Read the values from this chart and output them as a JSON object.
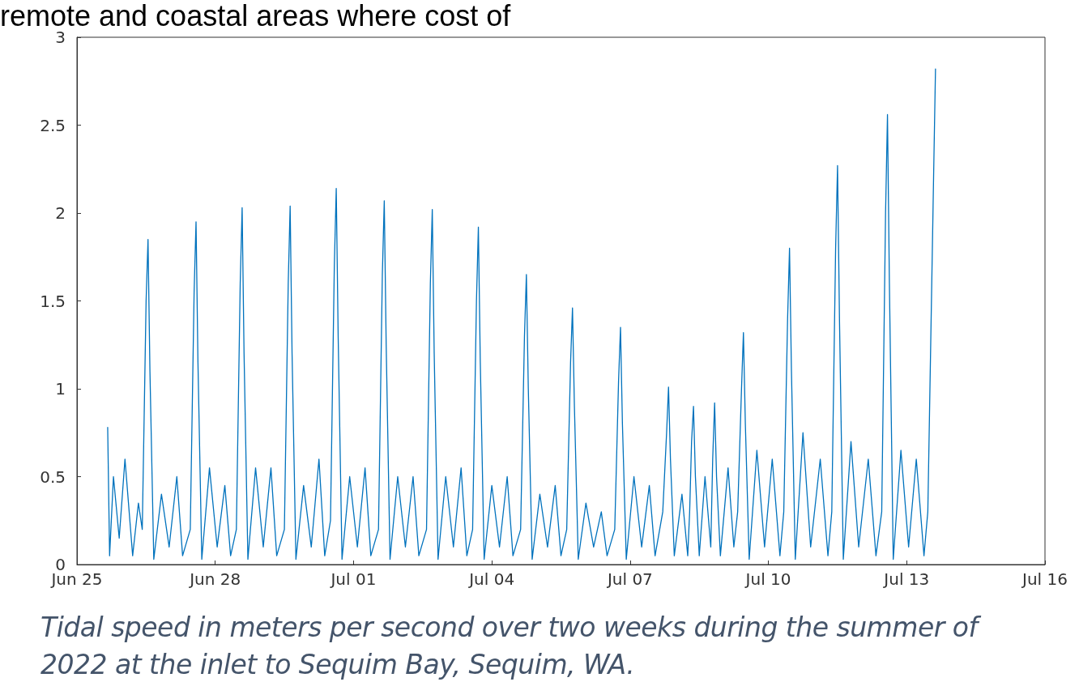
{
  "chart_data": {
    "type": "line",
    "annotations": [
      "remote and coastal areas where cost of",
      "Tidal speed in meters per second over two weeks during the summer of 2022 at the inlet to Sequim Bay, Sequim, WA."
    ],
    "xlim": [
      "2022-06-25",
      "2022-07-16"
    ],
    "xticks": [
      {
        "value": "2022-06-25",
        "label": "Jun 25"
      },
      {
        "value": "2022-06-28",
        "label": "Jun 28"
      },
      {
        "value": "2022-07-01",
        "label": "Jul 01"
      },
      {
        "value": "2022-07-04",
        "label": "Jul 04"
      },
      {
        "value": "2022-07-07",
        "label": "Jul 07"
      },
      {
        "value": "2022-07-10",
        "label": "Jul 10"
      },
      {
        "value": "2022-07-13",
        "label": "Jul 13"
      },
      {
        "value": "2022-07-16",
        "label": "Jul 16"
      }
    ],
    "ylim": [
      0,
      3
    ],
    "yticks": [
      0,
      0.5,
      1,
      1.5,
      2,
      2.5,
      3
    ],
    "grid": false,
    "marker": "none",
    "line_style": "solid",
    "series": [
      {
        "color": "#0072bd",
        "x": [
          "2022-06-25T16:00",
          "2022-06-25T17:00",
          "2022-06-25T19:00",
          "2022-06-25T22:00",
          "2022-06-26T01:00",
          "2022-06-26T05:00",
          "2022-06-26T08:00",
          "2022-06-26T10:00",
          "2022-06-26T12:00",
          "2022-06-26T13:00",
          "2022-06-26T14:00",
          "2022-06-26T16:00",
          "2022-06-26T20:00",
          "2022-06-27T00:00",
          "2022-06-27T04:00",
          "2022-06-27T07:00",
          "2022-06-27T11:00",
          "2022-06-27T13:00",
          "2022-06-27T14:00",
          "2022-06-27T15:00",
          "2022-06-27T17:00",
          "2022-06-27T21:00",
          "2022-06-28T01:00",
          "2022-06-28T05:00",
          "2022-06-28T08:00",
          "2022-06-28T11:00",
          "2022-06-28T13:00",
          "2022-06-28T14:00",
          "2022-06-28T15:00",
          "2022-06-28T17:00",
          "2022-06-28T21:00",
          "2022-06-29T01:00",
          "2022-06-29T05:00",
          "2022-06-29T08:00",
          "2022-06-29T12:00",
          "2022-06-29T14:00",
          "2022-06-29T15:00",
          "2022-06-29T16:00",
          "2022-06-29T18:00",
          "2022-06-29T22:00",
          "2022-06-30T02:00",
          "2022-06-30T06:00",
          "2022-06-30T09:00",
          "2022-06-30T12:00",
          "2022-06-30T14:00",
          "2022-06-30T15:00",
          "2022-06-30T16:00",
          "2022-06-30T18:00",
          "2022-06-30T22:00",
          "2022-07-01T02:00",
          "2022-07-01T06:00",
          "2022-07-01T09:00",
          "2022-07-01T13:00",
          "2022-07-01T15:00",
          "2022-07-01T16:00",
          "2022-07-01T17:00",
          "2022-07-01T19:00",
          "2022-07-01T23:00",
          "2022-07-02T03:00",
          "2022-07-02T07:00",
          "2022-07-02T10:00",
          "2022-07-02T14:00",
          "2022-07-02T16:00",
          "2022-07-02T17:00",
          "2022-07-02T18:00",
          "2022-07-02T20:00",
          "2022-07-03T00:00",
          "2022-07-03T04:00",
          "2022-07-03T08:00",
          "2022-07-03T11:00",
          "2022-07-03T14:00",
          "2022-07-03T16:00",
          "2022-07-03T17:00",
          "2022-07-03T18:00",
          "2022-07-03T20:00",
          "2022-07-04T00:00",
          "2022-07-04T04:00",
          "2022-07-04T08:00",
          "2022-07-04T11:00",
          "2022-07-04T15:00",
          "2022-07-04T17:00",
          "2022-07-04T18:00",
          "2022-07-04T19:00",
          "2022-07-04T21:00",
          "2022-07-05T01:00",
          "2022-07-05T05:00",
          "2022-07-05T09:00",
          "2022-07-05T12:00",
          "2022-07-05T15:00",
          "2022-07-05T17:00",
          "2022-07-05T18:00",
          "2022-07-05T19:00",
          "2022-07-05T21:00",
          "2022-07-06T01:00",
          "2022-07-06T05:00",
          "2022-07-06T09:00",
          "2022-07-06T12:00",
          "2022-07-06T16:00",
          "2022-07-06T18:00",
          "2022-07-06T19:00",
          "2022-07-06T20:00",
          "2022-07-06T22:00",
          "2022-07-07T02:00",
          "2022-07-07T06:00",
          "2022-07-07T10:00",
          "2022-07-07T13:00",
          "2022-07-07T17:00",
          "2022-07-07T19:00",
          "2022-07-07T20:00",
          "2022-07-07T21:00",
          "2022-07-07T23:00",
          "2022-07-08T03:00",
          "2022-07-08T06:00",
          "2022-07-08T07:00",
          "2022-07-08T08:00",
          "2022-07-08T09:00",
          "2022-07-08T10:00",
          "2022-07-08T12:00",
          "2022-07-08T15:00",
          "2022-07-08T18:00",
          "2022-07-08T19:00",
          "2022-07-08T20:00",
          "2022-07-08T21:00",
          "2022-07-08T23:00",
          "2022-07-09T03:00",
          "2022-07-09T06:00",
          "2022-07-09T08:00",
          "2022-07-09T10:00",
          "2022-07-09T11:00",
          "2022-07-09T12:00",
          "2022-07-09T14:00",
          "2022-07-09T18:00",
          "2022-07-09T22:00",
          "2022-07-10T02:00",
          "2022-07-10T06:00",
          "2022-07-10T08:00",
          "2022-07-10T10:00",
          "2022-07-10T11:00",
          "2022-07-10T12:00",
          "2022-07-10T14:00",
          "2022-07-10T18:00",
          "2022-07-10T22:00",
          "2022-07-11T03:00",
          "2022-07-11T07:00",
          "2022-07-11T09:00",
          "2022-07-11T11:00",
          "2022-07-11T12:00",
          "2022-07-11T13:00",
          "2022-07-11T15:00",
          "2022-07-11T19:00",
          "2022-07-11T23:00",
          "2022-07-12T04:00",
          "2022-07-12T08:00",
          "2022-07-12T11:00",
          "2022-07-12T13:00",
          "2022-07-12T14:00",
          "2022-07-12T15:00",
          "2022-07-12T17:00",
          "2022-07-12T21:00",
          "2022-07-13T01:00",
          "2022-07-13T05:00",
          "2022-07-13T09:00",
          "2022-07-13T11:00",
          "2022-07-13T14:00",
          "2022-07-13T15:00"
        ],
        "values": [
          0.78,
          0.05,
          0.5,
          0.15,
          0.6,
          0.05,
          0.35,
          0.2,
          1.5,
          1.85,
          1.1,
          0.03,
          0.4,
          0.1,
          0.5,
          0.05,
          0.2,
          1.55,
          1.95,
          1.15,
          0.03,
          0.55,
          0.1,
          0.45,
          0.05,
          0.2,
          1.6,
          2.03,
          1.2,
          0.03,
          0.55,
          0.1,
          0.55,
          0.05,
          0.2,
          1.6,
          2.04,
          1.2,
          0.03,
          0.45,
          0.1,
          0.6,
          0.05,
          0.25,
          1.7,
          2.14,
          1.3,
          0.03,
          0.5,
          0.1,
          0.55,
          0.05,
          0.2,
          1.65,
          2.07,
          1.25,
          0.03,
          0.5,
          0.1,
          0.5,
          0.05,
          0.2,
          1.6,
          2.02,
          1.2,
          0.03,
          0.5,
          0.1,
          0.55,
          0.05,
          0.2,
          1.5,
          1.92,
          1.15,
          0.03,
          0.45,
          0.1,
          0.5,
          0.05,
          0.2,
          1.3,
          1.65,
          1.0,
          0.03,
          0.4,
          0.1,
          0.45,
          0.05,
          0.2,
          1.15,
          1.46,
          0.9,
          0.03,
          0.35,
          0.1,
          0.3,
          0.05,
          0.2,
          1.05,
          1.35,
          0.8,
          0.03,
          0.5,
          0.1,
          0.45,
          0.05,
          0.3,
          0.75,
          1.01,
          0.6,
          0.05,
          0.4,
          0.05,
          0.3,
          0.7,
          0.9,
          0.5,
          0.05,
          0.5,
          0.1,
          0.6,
          0.92,
          0.5,
          0.05,
          0.55,
          0.1,
          0.3,
          1.0,
          1.32,
          0.8,
          0.03,
          0.65,
          0.1,
          0.6,
          0.05,
          0.3,
          1.4,
          1.8,
          1.1,
          0.03,
          0.75,
          0.1,
          0.6,
          0.05,
          0.3,
          1.8,
          2.27,
          1.4,
          0.03,
          0.7,
          0.1,
          0.6,
          0.05,
          0.3,
          2.0,
          2.56,
          1.6,
          0.03,
          0.65,
          0.1,
          0.6,
          0.05,
          0.3,
          2.2,
          2.82
        ]
      }
    ]
  }
}
